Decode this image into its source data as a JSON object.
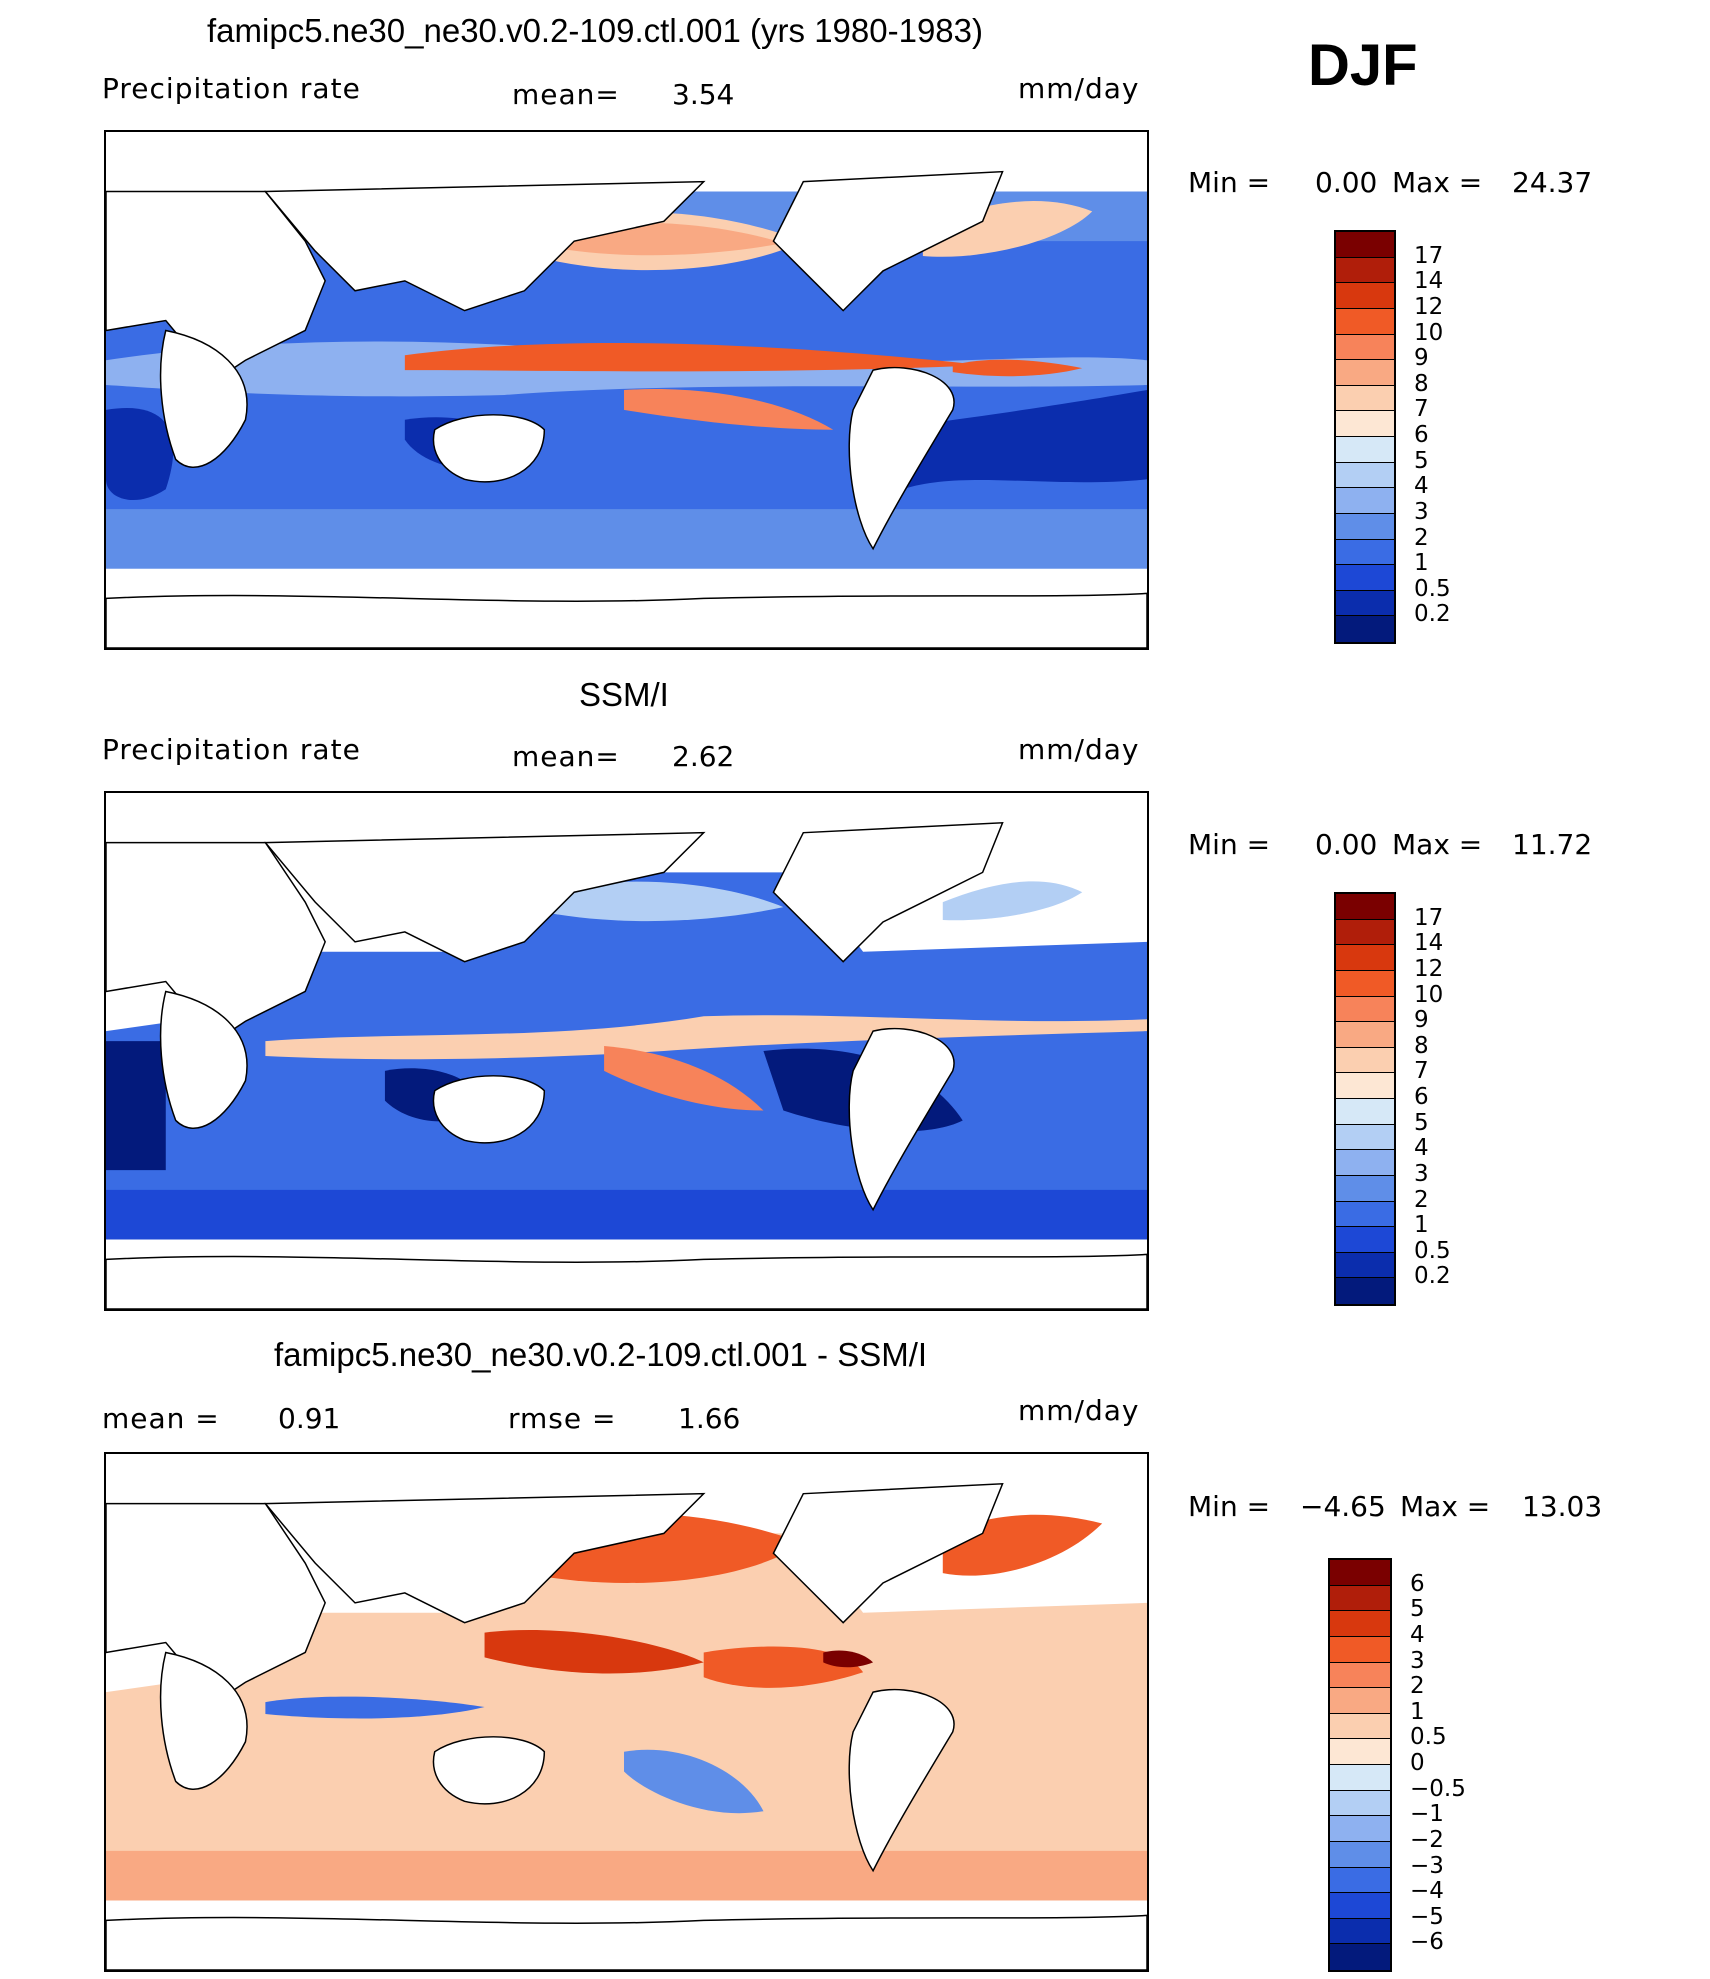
{
  "season": "DJF",
  "panels": [
    {
      "title": "famipc5.ne30_ne30.v0.2-109.ctl.001 (yrs 1980-1983)",
      "left_label": "Precipitation  rate",
      "mean_label": "mean=",
      "mean_value": "3.54",
      "units": "mm/day",
      "min_label": "Min  =",
      "min_value": "0.00",
      "max_label": "Max  =",
      "max_value": "24.37",
      "colorbar_labels": [
        "17",
        "14",
        "12",
        "10",
        "9",
        "8",
        "7",
        "6",
        "5",
        "4",
        "3",
        "2",
        "1",
        "0.5",
        "0.2"
      ],
      "colorbar_colors": [
        "#7a0000",
        "#b01e0a",
        "#d8380e",
        "#f05a26",
        "#f7835a",
        "#f9a983",
        "#fbcfb0",
        "#fde7d4",
        "#d6e8f7",
        "#b3cff4",
        "#8eb1f0",
        "#5f8ee8",
        "#3a6ce4",
        "#1d48d6",
        "#0b2dad",
        "#031a7c"
      ]
    },
    {
      "title": "SSM/I",
      "left_label": "Precipitation  rate",
      "mean_label": "mean=",
      "mean_value": "2.62",
      "units": "mm/day",
      "min_label": "Min  =",
      "min_value": "0.00",
      "max_label": "Max  =",
      "max_value": "11.72",
      "colorbar_labels": [
        "17",
        "14",
        "12",
        "10",
        "9",
        "8",
        "7",
        "6",
        "5",
        "4",
        "3",
        "2",
        "1",
        "0.5",
        "0.2"
      ],
      "colorbar_colors": [
        "#7a0000",
        "#b01e0a",
        "#d8380e",
        "#f05a26",
        "#f7835a",
        "#f9a983",
        "#fbcfb0",
        "#fde7d4",
        "#d6e8f7",
        "#b3cff4",
        "#8eb1f0",
        "#5f8ee8",
        "#3a6ce4",
        "#1d48d6",
        "#0b2dad",
        "#031a7c"
      ]
    },
    {
      "title": "famipc5.ne30_ne30.v0.2-109.ctl.001 - SSM/I",
      "mean_label": "mean  =",
      "mean_value": "0.91",
      "rmse_label": "rmse  =",
      "rmse_value": "1.66",
      "units": "mm/day",
      "min_label": "Min  =",
      "min_value": "−4.65",
      "max_label": "Max  =",
      "max_value": "13.03",
      "colorbar_labels": [
        "6",
        "5",
        "4",
        "3",
        "2",
        "1",
        "0.5",
        "0",
        "−0.5",
        "−1",
        "−2",
        "−3",
        "−4",
        "−5",
        "−6"
      ],
      "colorbar_colors": [
        "#7a0000",
        "#b01e0a",
        "#d8380e",
        "#f05a26",
        "#f7835a",
        "#f9a983",
        "#fbcfb0",
        "#fde7d4",
        "#d6e8f7",
        "#b3cff4",
        "#8eb1f0",
        "#5f8ee8",
        "#3a6ce4",
        "#1d48d6",
        "#0b2dad",
        "#031a7c"
      ]
    }
  ]
}
